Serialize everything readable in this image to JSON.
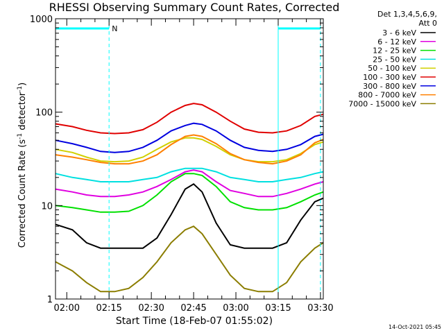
{
  "chart_data": {
    "type": "line",
    "title": "RHESSI Observing Summary Count Rates, Corrected",
    "xlabel": "Start Time (18-Feb-07 01:55:02)",
    "ylabel": "Corrected Count Rate (s",
    "ylabel_sup1": "-1",
    "ylabel_mid": " detector",
    "ylabel_sup2": "-1",
    "ylabel_end": ")",
    "yscale": "log",
    "ylim": [
      1,
      1000
    ],
    "xlim_minutes": [
      1.0,
      96.0
    ],
    "x_tick_labels": [
      {
        "label": "02:00",
        "minute": 5
      },
      {
        "label": "02:15",
        "minute": 20
      },
      {
        "label": "02:30",
        "minute": 35
      },
      {
        "label": "02:45",
        "minute": 50
      },
      {
        "label": "03:00",
        "minute": 65
      },
      {
        "label": "03:15",
        "minute": 80
      },
      {
        "label": "03:30",
        "minute": 95
      }
    ],
    "y_tick_labels": [
      {
        "label": "1",
        "value": 1
      },
      {
        "label": "10",
        "value": 10
      },
      {
        "label": "100",
        "value": 100
      },
      {
        "label": "1000",
        "value": 1000
      }
    ],
    "legend_header_1": "Det 1,3,4,5,6,9,",
    "legend_header_2": "Att 0",
    "legend_placement": "right",
    "series": [
      {
        "name": "3 - 6 keV",
        "color": "#000000",
        "x": [
          1,
          7,
          12,
          17,
          22,
          27,
          32,
          37,
          42,
          47,
          50,
          53,
          58,
          63,
          68,
          73,
          78,
          83,
          88,
          93,
          96
        ],
        "y": [
          6.3,
          5.5,
          4.0,
          3.5,
          3.5,
          3.5,
          3.5,
          4.5,
          8,
          15,
          17,
          14,
          6.5,
          3.8,
          3.5,
          3.5,
          3.5,
          4.0,
          7,
          11,
          12
        ]
      },
      {
        "name": "6 - 12 keV",
        "color": "#e000e0",
        "x": [
          1,
          7,
          12,
          17,
          22,
          27,
          32,
          37,
          42,
          47,
          50,
          53,
          58,
          63,
          68,
          73,
          78,
          83,
          88,
          93,
          96
        ],
        "y": [
          15,
          14,
          13,
          12.5,
          12.5,
          13,
          14,
          16,
          19,
          23,
          24,
          23,
          18,
          14.5,
          13.5,
          12.5,
          12.5,
          13.5,
          15,
          17,
          18
        ]
      },
      {
        "name": "12 - 25 keV",
        "color": "#00e000",
        "x": [
          1,
          7,
          12,
          17,
          22,
          27,
          32,
          37,
          42,
          47,
          50,
          53,
          58,
          63,
          68,
          73,
          78,
          83,
          88,
          93,
          96
        ],
        "y": [
          10,
          9.5,
          9,
          8.5,
          8.5,
          8.7,
          10,
          13,
          18,
          22,
          22,
          21,
          16,
          11,
          9.5,
          9,
          9,
          9.5,
          11,
          13,
          14
        ]
      },
      {
        "name": "25 - 50 keV",
        "color": "#00e0e0",
        "x": [
          1,
          7,
          12,
          17,
          22,
          27,
          32,
          37,
          42,
          47,
          50,
          53,
          58,
          63,
          68,
          73,
          78,
          83,
          88,
          93,
          96
        ],
        "y": [
          22,
          20,
          19,
          18,
          18,
          18,
          19,
          20,
          23,
          25,
          25,
          25,
          23,
          20,
          19,
          18,
          18,
          19,
          20,
          22,
          23
        ]
      },
      {
        "name": "50 - 100 keV",
        "color": "#d0d000",
        "x": [
          1,
          7,
          12,
          17,
          22,
          27,
          32,
          37,
          42,
          47,
          50,
          53,
          58,
          63,
          68,
          73,
          78,
          83,
          88,
          93,
          96
        ],
        "y": [
          40,
          37,
          33,
          30,
          29.5,
          30,
          33,
          40,
          48,
          53,
          53,
          51,
          43,
          35,
          31,
          29.5,
          29.5,
          31,
          36,
          45,
          48
        ]
      },
      {
        "name": "100 - 300 keV",
        "color": "#e00000",
        "x": [
          1,
          7,
          12,
          17,
          22,
          27,
          32,
          37,
          42,
          47,
          50,
          53,
          58,
          63,
          68,
          73,
          78,
          83,
          88,
          93,
          96
        ],
        "y": [
          75,
          70,
          64,
          60,
          59,
          60,
          65,
          78,
          100,
          118,
          124,
          120,
          100,
          80,
          66,
          61,
          60,
          63,
          72,
          90,
          95
        ]
      },
      {
        "name": "300 - 800 keV",
        "color": "#0000e0",
        "x": [
          1,
          7,
          12,
          17,
          22,
          27,
          32,
          37,
          42,
          47,
          50,
          53,
          58,
          63,
          68,
          73,
          78,
          83,
          88,
          93,
          96
        ],
        "y": [
          50,
          46,
          42,
          38,
          37,
          38,
          42,
          50,
          63,
          72,
          76,
          74,
          63,
          50,
          42,
          39,
          38,
          40,
          45,
          55,
          58
        ]
      },
      {
        "name": "800 - 7000 keV",
        "color": "#ff8000",
        "x": [
          1,
          7,
          12,
          17,
          22,
          27,
          32,
          37,
          42,
          47,
          50,
          53,
          58,
          63,
          68,
          73,
          78,
          83,
          88,
          93,
          96
        ],
        "y": [
          35,
          33,
          31,
          29,
          28,
          28,
          30,
          35,
          45,
          55,
          57,
          55,
          46,
          36,
          31,
          29,
          28,
          30,
          35,
          47,
          51
        ]
      },
      {
        "name": "7000 - 15000 keV",
        "color": "#8b7d00",
        "x": [
          1,
          7,
          12,
          17,
          22,
          27,
          32,
          37,
          42,
          47,
          50,
          53,
          58,
          63,
          68,
          73,
          78,
          83,
          88,
          93,
          96
        ],
        "y": [
          2.5,
          2.0,
          1.5,
          1.2,
          1.2,
          1.3,
          1.7,
          2.5,
          4.0,
          5.5,
          6.0,
          5.0,
          3.0,
          1.8,
          1.3,
          1.2,
          1.2,
          1.5,
          2.5,
          3.5,
          4.0
        ]
      }
    ],
    "attenuator_bar": {
      "color": "#00ffff",
      "label": "N",
      "segments_minutes": [
        [
          1,
          20
        ],
        [
          80,
          95
        ]
      ]
    },
    "vertical_markers_minutes": [
      {
        "minute": 20,
        "style": "dashed"
      },
      {
        "minute": 80,
        "style": "solid"
      },
      {
        "minute": 95,
        "style": "dashed"
      }
    ],
    "date_stamp": "14-Oct-2021 05:45"
  }
}
